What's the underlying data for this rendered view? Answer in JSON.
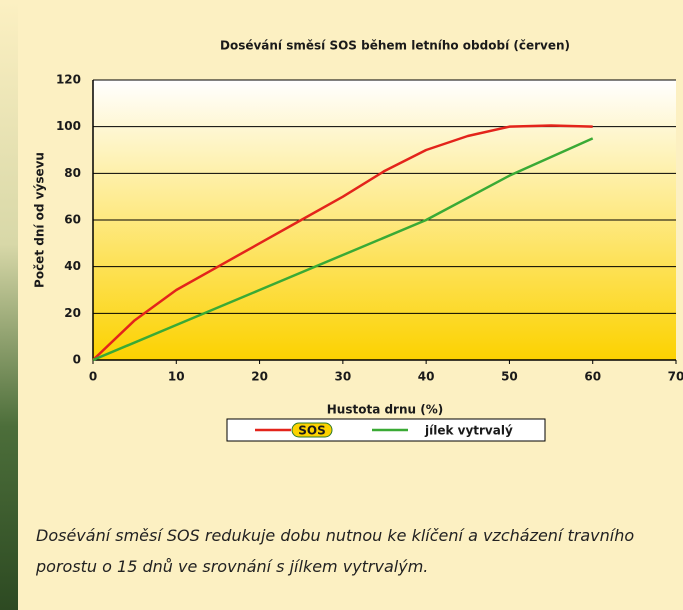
{
  "chart_data": {
    "type": "line",
    "title": "Dosévání směsí SOS během letního období (červen)",
    "x_label": "Hustota drnu (%)",
    "y_label": "Počet dní od výsevu",
    "series": [
      {
        "name": "SOS",
        "color": "#e3241b",
        "x": [
          0,
          5,
          10,
          15,
          20,
          25,
          30,
          35,
          40,
          45,
          50,
          55,
          60
        ],
        "values": [
          0,
          17,
          30,
          40,
          50,
          60,
          70,
          81,
          90,
          96,
          100,
          100.5,
          100
        ]
      },
      {
        "name": "jílek vytrvalý",
        "color": "#3aaa35",
        "x": [
          0,
          10,
          20,
          30,
          40,
          50,
          60
        ],
        "values": [
          0,
          15,
          30,
          45,
          60,
          79,
          95
        ]
      }
    ],
    "xlim": [
      0,
      70
    ],
    "xticks": [
      0,
      10,
      20,
      30,
      40,
      50,
      60,
      70
    ],
    "ylim": [
      0,
      120
    ],
    "yticks": [
      0,
      20,
      40,
      60,
      80,
      100,
      120
    ],
    "grid": true
  },
  "caption": "Dosévání směsí SOS redukuje dobu nutnou ke klíčení a vzcházení travního porostu o 15 dnů ve srovnání s jílkem vytrvalým."
}
